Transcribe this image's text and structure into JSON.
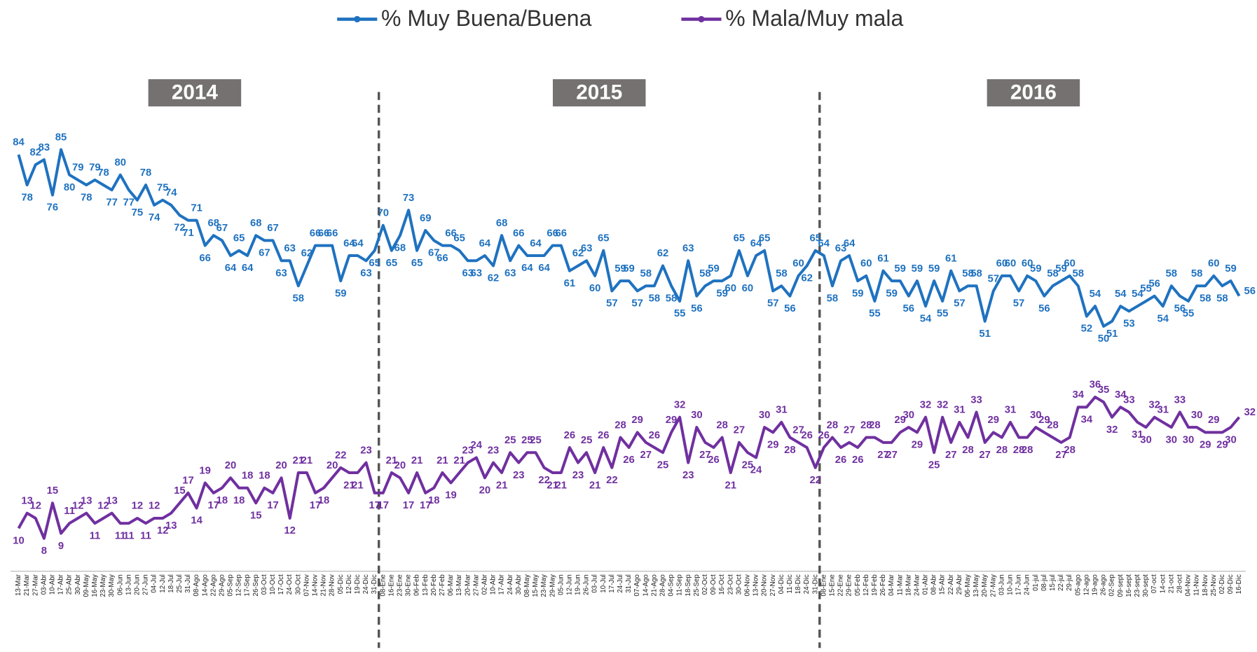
{
  "chart_data": {
    "type": "line",
    "annotations": [
      "2014",
      "2015",
      "2016"
    ],
    "categories": [
      "13-Mar",
      "21-Mar",
      "27-Mar",
      "03-Abr",
      "10-Abr",
      "17-Abr",
      "25-Abr",
      "30-Abr",
      "09-May",
      "16-May",
      "23-May",
      "30-May",
      "06-Jun",
      "13-Jun",
      "20-Jun",
      "27-Jun",
      "04-Jul",
      "12-Jul",
      "18-Jul",
      "25-Jul",
      "31-Jul",
      "08-Ago",
      "14-Ago",
      "22-Ago",
      "29-Ago",
      "05-Sep",
      "12-Sep",
      "17-Sep",
      "26-Sep",
      "03-Oct",
      "10-Oct",
      "17-Oct",
      "24-Oct",
      "30-Oct",
      "07-Nov",
      "14-Nov",
      "21-Nov",
      "28-Nov",
      "05-Dic",
      "12-Dic",
      "19-Dic",
      "24-Dic",
      "31-Dic",
      "08-Ene",
      "16-Ene",
      "23-Ene",
      "30-Ene",
      "06-Feb",
      "13-Feb",
      "20-Feb",
      "27-Feb",
      "06-Mar",
      "13-Mar",
      "20-Mar",
      "27-Mar",
      "02-Abr",
      "10-Abr",
      "17-Abr",
      "24-Abr",
      "30-Abr",
      "08-May",
      "15-May",
      "23-May",
      "29-May",
      "05-Jun",
      "12-Jun",
      "19-Jun",
      "26-Jun",
      "03-Jul",
      "10-Jul",
      "17-Jul",
      "24-Jul",
      "31-Jul",
      "07-Ago",
      "14-Ago",
      "21-Ago",
      "28-Ago",
      "04-Sep",
      "11-Sep",
      "18-Sep",
      "25-Sep",
      "02-Oct",
      "09-Oct",
      "16-Oct",
      "23-Oct",
      "30-Oct",
      "06-Nov",
      "13-Nov",
      "20-Nov",
      "27-Nov",
      "04-Dic",
      "11-Dic",
      "18-Dic",
      "24-Dic",
      "31-Dic",
      "08-Ene",
      "15-Ene",
      "22-Ene",
      "29-Ene",
      "05-Feb",
      "12-Feb",
      "19-Feb",
      "26-Feb",
      "04-Mar",
      "11-Mar",
      "18-Mar",
      "24-Mar",
      "01-Abr",
      "08-Abr",
      "15-Abr",
      "22-Abr",
      "29-Abr",
      "06-May",
      "13-May",
      "20-May",
      "27-May",
      "03-Jun",
      "10-Jun",
      "17-Jun",
      "24-Jun",
      "01-jul",
      "08-jul",
      "15-jul",
      "22-jul",
      "29-jul",
      "05-ago",
      "12-ago",
      "19-ago",
      "26-ago",
      "02-Sep",
      "09-sept",
      "16-sept",
      "23-sept",
      "30-sept",
      "07-oct",
      "14-oct",
      "21-oct",
      "28-oct",
      "04-Nov",
      "11-Nov",
      "18-Nov",
      "25-Nov",
      "02-Dic",
      "09-Dic",
      "16-Dic"
    ],
    "series": [
      {
        "name": "% Muy Buena/Buena",
        "color": "#1f72c0",
        "values": [
          84,
          78,
          82,
          83,
          76,
          85,
          80,
          79,
          78,
          79,
          78,
          77,
          80,
          77,
          75,
          78,
          74,
          75,
          74,
          72,
          71,
          71,
          66,
          68,
          67,
          64,
          65,
          64,
          68,
          67,
          67,
          63,
          63,
          58,
          62,
          66,
          66,
          66,
          59,
          64,
          64,
          63,
          65,
          70,
          65,
          68,
          73,
          65,
          69,
          67,
          66,
          66,
          65,
          63,
          63,
          64,
          62,
          68,
          63,
          66,
          64,
          64,
          64,
          66,
          66,
          61,
          62,
          63,
          60,
          65,
          57,
          59,
          59,
          57,
          58,
          58,
          62,
          58,
          55,
          63,
          56,
          58,
          59,
          59,
          60,
          65,
          60,
          64,
          65,
          57,
          58,
          56,
          60,
          62,
          65,
          64,
          58,
          63,
          64,
          59,
          60,
          55,
          61,
          59,
          59,
          56,
          59,
          54,
          59,
          55,
          61,
          57,
          58,
          58,
          51,
          57,
          60,
          60,
          57,
          60,
          59,
          56,
          58,
          59,
          60,
          58,
          52,
          54,
          50,
          51,
          54,
          53,
          54,
          55,
          56,
          54,
          58,
          56,
          55,
          58,
          58,
          60,
          58,
          59,
          56
        ]
      },
      {
        "name": "% Mala/Muy mala",
        "color": "#7030a0",
        "values": [
          10,
          13,
          12,
          8,
          15,
          9,
          11,
          12,
          13,
          11,
          12,
          13,
          11,
          11,
          12,
          11,
          12,
          12,
          13,
          15,
          17,
          14,
          19,
          17,
          18,
          20,
          18,
          18,
          15,
          18,
          17,
          20,
          12,
          21,
          21,
          17,
          18,
          20,
          22,
          21,
          21,
          23,
          17,
          17,
          21,
          20,
          17,
          21,
          17,
          18,
          21,
          19,
          21,
          23,
          24,
          20,
          23,
          21,
          25,
          23,
          25,
          25,
          22,
          21,
          21,
          26,
          23,
          25,
          21,
          26,
          22,
          28,
          26,
          29,
          27,
          26,
          25,
          29,
          32,
          23,
          30,
          27,
          26,
          28,
          21,
          27,
          25,
          24,
          30,
          29,
          31,
          28,
          27,
          26,
          22,
          26,
          28,
          26,
          27,
          26,
          28,
          28,
          27,
          27,
          29,
          30,
          29,
          32,
          25,
          32,
          27,
          31,
          28,
          33,
          27,
          29,
          28,
          31,
          28,
          28,
          30,
          29,
          28,
          27,
          28,
          34,
          34,
          36,
          35,
          32,
          34,
          33,
          31,
          30,
          32,
          31,
          30,
          33,
          30,
          30,
          29,
          29,
          29,
          30,
          32
        ]
      }
    ]
  }
}
